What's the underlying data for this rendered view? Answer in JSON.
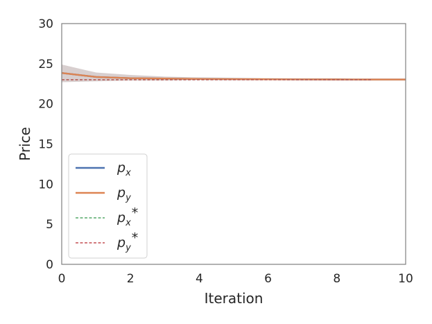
{
  "chart_data": {
    "type": "line",
    "xlabel": "Iteration",
    "ylabel": "Price",
    "xlim": [
      0,
      10
    ],
    "ylim": [
      0,
      30
    ],
    "xticks": [
      0,
      2,
      4,
      6,
      8,
      10
    ],
    "yticks": [
      0,
      5,
      10,
      15,
      20,
      25,
      30
    ],
    "grid": false,
    "legend_position": "lower-left",
    "band": {
      "x": [
        0,
        1,
        2,
        3,
        4,
        5,
        6,
        7,
        8,
        9,
        10
      ],
      "upper": [
        24.9,
        23.9,
        23.6,
        23.4,
        23.3,
        23.25,
        23.2,
        23.15,
        23.15,
        23.1,
        23.1
      ],
      "lower": [
        22.7,
        22.8,
        22.9,
        22.9,
        22.95,
        22.95,
        22.95,
        22.95,
        22.95,
        22.95,
        22.95
      ],
      "color": "#b8a8a8"
    },
    "series": [
      {
        "name": "p_x",
        "base": "p",
        "sub": "x",
        "sup": "",
        "style": "solid",
        "color": "#4c72b0",
        "x": [
          0,
          1,
          2,
          3,
          4,
          5,
          6,
          7,
          8,
          9,
          10
        ],
        "y": [
          23.85,
          23.35,
          23.2,
          23.15,
          23.1,
          23.08,
          23.06,
          23.05,
          23.04,
          23.03,
          23.03
        ]
      },
      {
        "name": "p_y",
        "base": "p",
        "sub": "y",
        "sup": "",
        "style": "solid",
        "color": "#dd8452",
        "x": [
          0,
          1,
          2,
          3,
          4,
          5,
          6,
          7,
          8,
          9,
          10
        ],
        "y": [
          23.85,
          23.35,
          23.2,
          23.15,
          23.1,
          23.08,
          23.06,
          23.05,
          23.04,
          23.03,
          23.03
        ]
      },
      {
        "name": "p_x*",
        "base": "p",
        "sub": "x",
        "sup": "*",
        "style": "dashed",
        "color": "#55a868",
        "x": [
          0,
          9
        ],
        "y": [
          23.0,
          23.0
        ]
      },
      {
        "name": "p_y*",
        "base": "p",
        "sub": "y",
        "sup": "*",
        "style": "dashed",
        "color": "#c44e52",
        "x": [
          0,
          9
        ],
        "y": [
          23.0,
          23.0
        ]
      }
    ]
  }
}
